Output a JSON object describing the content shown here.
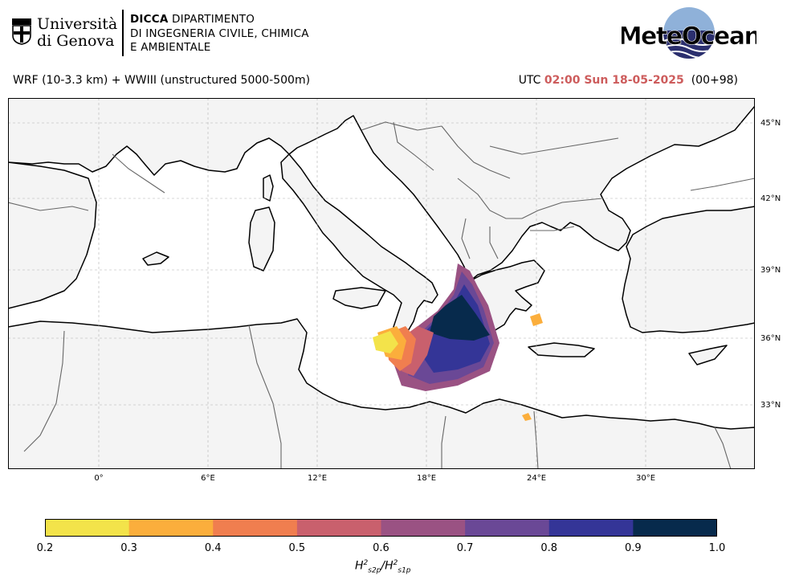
{
  "header": {
    "university_line1": "Università",
    "university_line2": "di Genova",
    "dept_line1_bold": "DICCA",
    "dept_line1_rest": " DIPARTIMENTO",
    "dept_line2": "DI INGEGNERIA CIVILE, CHIMICA",
    "dept_line3": "E AMBIENTALE",
    "brand": "MeteOcean"
  },
  "model_label": "WRF (10-3.3 km) + WWIII (unstructured 5000-500m)",
  "time": {
    "prefix": "UTC",
    "value": "02:00 Sun 18-05-2025",
    "lead": "(00+98)"
  },
  "map": {
    "lat_labels": [
      "45°N",
      "42°N",
      "39°N",
      "36°N",
      "33°N"
    ],
    "lon_labels": [
      "0°",
      "6°E",
      "12°E",
      "18°E",
      "24°E",
      "30°E"
    ],
    "land_color": "#f4f4f4",
    "sea_color": "#ffffff"
  },
  "colorbar": {
    "ticks": [
      "0.2",
      "0.3",
      "0.4",
      "0.5",
      "0.6",
      "0.7",
      "0.8",
      "0.9",
      "1.0"
    ],
    "colors": [
      "#f3e34a",
      "#fbae3c",
      "#f07e4f",
      "#c9606d",
      "#9a5283",
      "#6a4896",
      "#343597",
      "#072a4c"
    ],
    "label_main": "H",
    "label_sub1": "s2p",
    "label_sub2": "s1p",
    "label_sup": "2"
  }
}
